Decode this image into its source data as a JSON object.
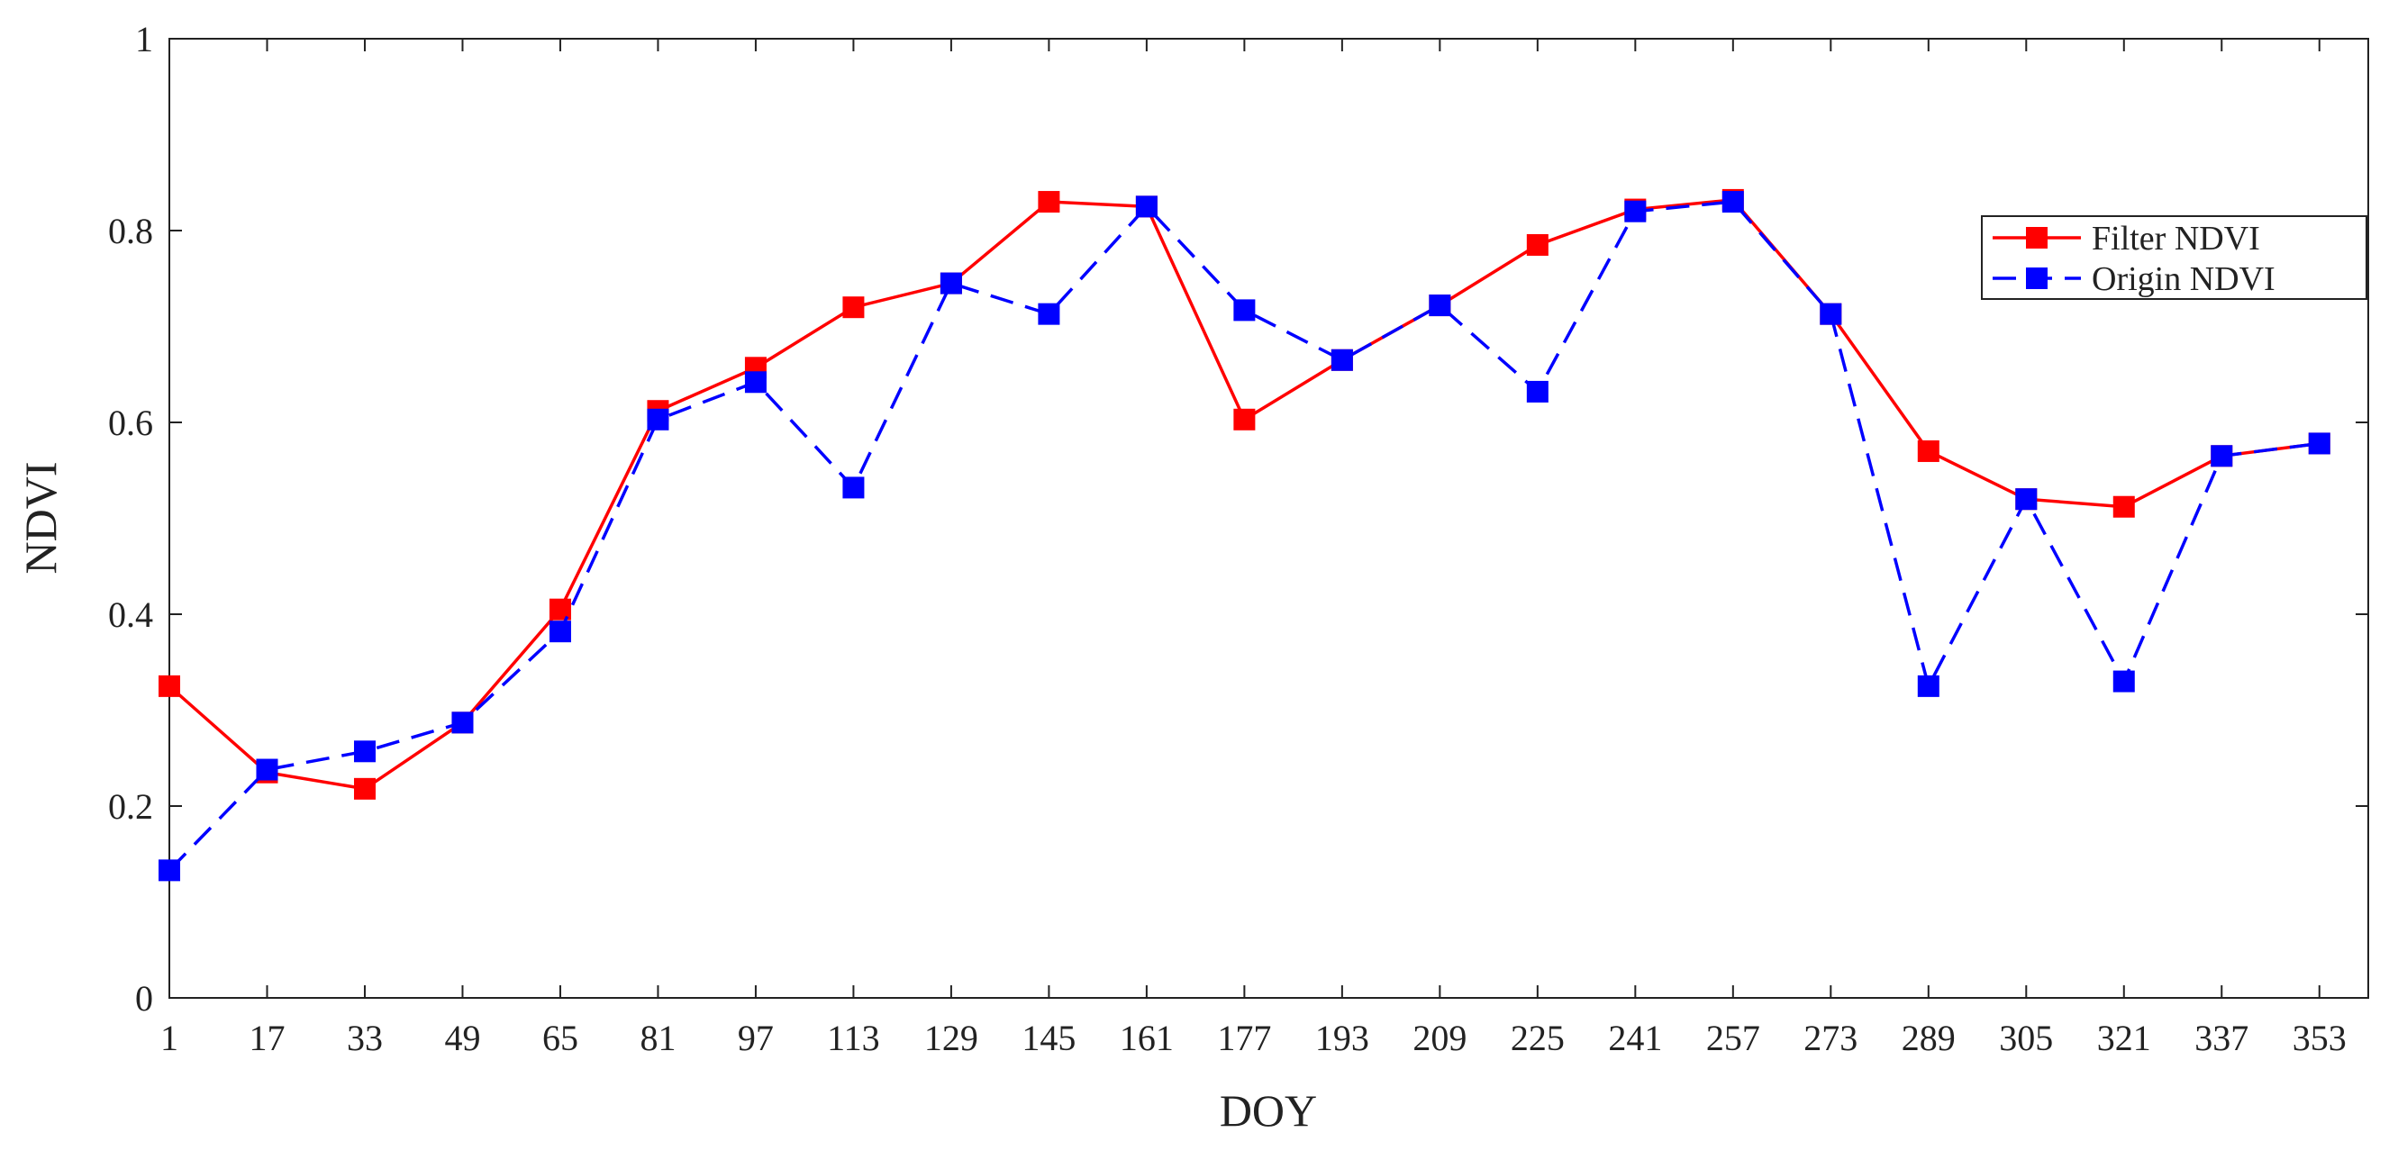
{
  "chart_data": {
    "type": "line",
    "x_label": "DOY",
    "y_label": "NDVI",
    "x": [
      1,
      17,
      33,
      49,
      65,
      81,
      97,
      113,
      129,
      145,
      161,
      177,
      193,
      209,
      225,
      241,
      257,
      273,
      289,
      305,
      321,
      337,
      353
    ],
    "series": [
      {
        "name": "Filter NDVI",
        "color": "#ff0000",
        "dashed": false,
        "values": [
          0.325,
          0.235,
          0.218,
          0.287,
          0.405,
          0.612,
          0.657,
          0.72,
          0.745,
          0.83,
          0.825,
          0.603,
          0.665,
          0.722,
          0.785,
          0.822,
          0.832,
          0.713,
          0.57,
          0.52,
          0.512,
          0.565,
          0.578
        ]
      },
      {
        "name": "Origin NDVI",
        "color": "#0000ff",
        "dashed": true,
        "values": [
          0.133,
          0.238,
          0.257,
          0.287,
          0.382,
          0.603,
          0.642,
          0.532,
          0.745,
          0.713,
          0.825,
          0.717,
          0.665,
          0.722,
          0.632,
          0.82,
          0.83,
          0.713,
          0.325,
          0.52,
          0.33,
          0.565,
          0.578
        ]
      }
    ],
    "xlim": [
      1,
      361
    ],
    "xticks": [
      1,
      17,
      33,
      49,
      65,
      81,
      97,
      113,
      129,
      145,
      161,
      177,
      193,
      209,
      225,
      241,
      257,
      273,
      289,
      305,
      321,
      337,
      353
    ],
    "ylim": [
      0,
      1
    ],
    "yticks": [
      0,
      0.2,
      0.4,
      0.6,
      0.8,
      1
    ],
    "grid": false,
    "legend": "upper right"
  }
}
